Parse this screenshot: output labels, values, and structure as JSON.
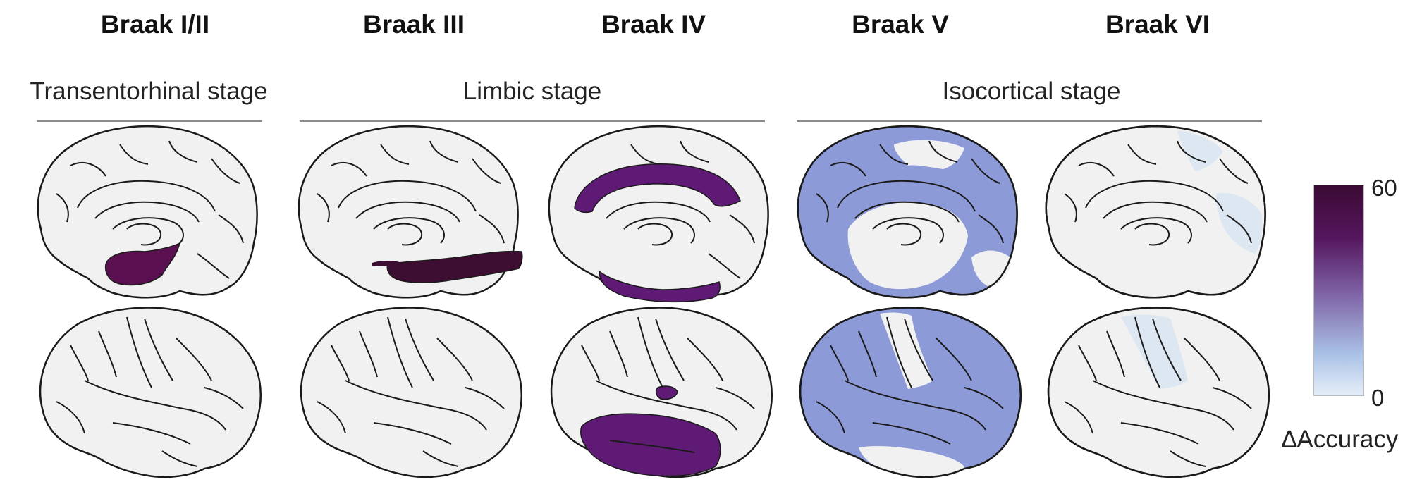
{
  "stages": [
    {
      "key": "braak_i_ii",
      "title": "Braak I/II"
    },
    {
      "key": "braak_iii",
      "title": "Braak III"
    },
    {
      "key": "braak_iv",
      "title": "Braak IV"
    },
    {
      "key": "braak_v",
      "title": "Braak V"
    },
    {
      "key": "braak_vi",
      "title": "Braak VI"
    }
  ],
  "groups": [
    {
      "key": "transentorhinal",
      "label": "Transentorhinal stage"
    },
    {
      "key": "limbic",
      "label": "Limbic stage"
    },
    {
      "key": "isocortical",
      "label": "Isocortical stage"
    }
  ],
  "colorbar": {
    "max_label": "60",
    "min_label": "0",
    "label": "∆Accuracy",
    "max_value": 60,
    "min_value": 0,
    "colors": [
      "#e4eef8",
      "#a9c0e6",
      "#7f64a6",
      "#55165e",
      "#3a0a32"
    ]
  },
  "region_colors": {
    "brain_fill": "#f1f1f1",
    "outline": "#1a1a1a",
    "stage_i_ii": "#5a1050",
    "stage_iii": "#3d0d32",
    "stage_iv": "#5e1a74",
    "stage_v": "#8c9ad8",
    "stage_vi": "#dce7f2"
  }
}
